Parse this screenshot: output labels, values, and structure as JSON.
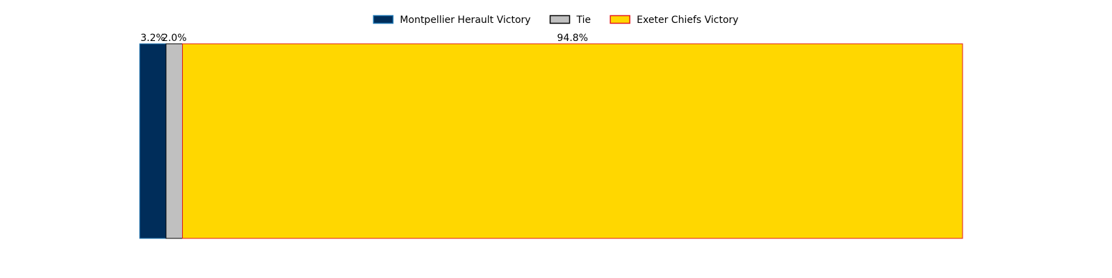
{
  "chart_data": {
    "type": "bar",
    "orientation": "horizontal",
    "stacked": true,
    "title": "",
    "xlabel": "",
    "ylabel": "",
    "axes_visible": false,
    "grid": false,
    "legend_position": "top-center",
    "series": [
      {
        "name": "Montpellier Herault Victory",
        "value": 3.2,
        "label": "3.2%",
        "color": "#002D5A",
        "edge_color": "#1F77B4"
      },
      {
        "name": "Tie",
        "value": 2.0,
        "label": "2.0%",
        "color": "#C0C0C0",
        "edge_color": "#000000"
      },
      {
        "name": "Exeter Chiefs Victory",
        "value": 94.8,
        "label": "94.8%",
        "color": "#FFD700",
        "edge_color": "#E31A1C"
      }
    ],
    "xlim": [
      0,
      100
    ]
  }
}
